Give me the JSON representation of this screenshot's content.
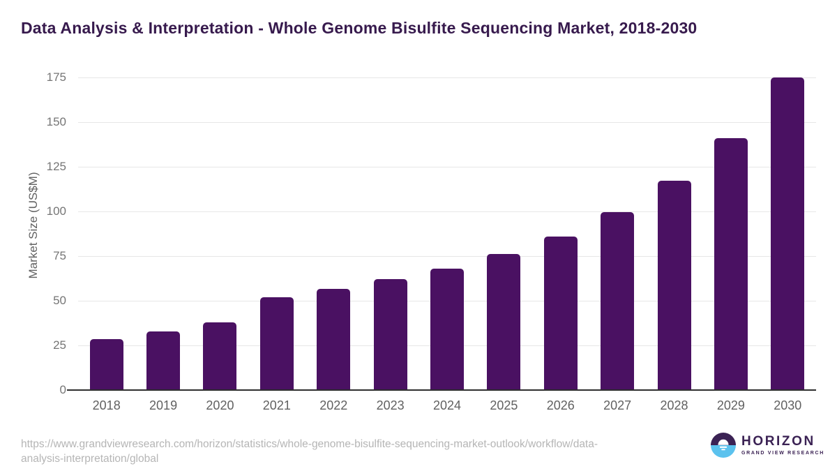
{
  "chart_data": {
    "type": "bar",
    "title": "Data Analysis & Interpretation - Whole Genome Bisulfite Sequencing Market, 2018-2030",
    "categories": [
      "2018",
      "2019",
      "2020",
      "2021",
      "2022",
      "2023",
      "2024",
      "2025",
      "2026",
      "2027",
      "2028",
      "2029",
      "2030"
    ],
    "values": [
      28.5,
      33,
      38,
      52,
      56.5,
      62,
      68,
      76,
      86,
      99.5,
      117,
      141,
      175
    ],
    "xlabel": "",
    "ylabel": "Market Size (US$M)",
    "ylim": [
      0,
      175
    ],
    "yticks": [
      0,
      25,
      50,
      75,
      100,
      125,
      150,
      175
    ],
    "grid": "horizontal",
    "legend": "none"
  },
  "footer": {
    "source_url": "https://www.grandviewresearch.com/horizon/statistics/whole-genome-bisulfite-sequencing-market-outlook/workflow/data-analysis-interpretation/global",
    "logo": {
      "brand": "HORIZON",
      "sub_brand": "GRAND VIEW RESEARCH",
      "icon": "horizon-sunrise-icon"
    }
  },
  "colors": {
    "title": "#371a4d",
    "bar": "#4a1162",
    "gridline": "#e7e7e7",
    "axis_line": "#2e2e2e",
    "url_text": "#b5b5b5",
    "logo_purple": "#3b2254",
    "logo_blue": "#5bc2ee"
  }
}
